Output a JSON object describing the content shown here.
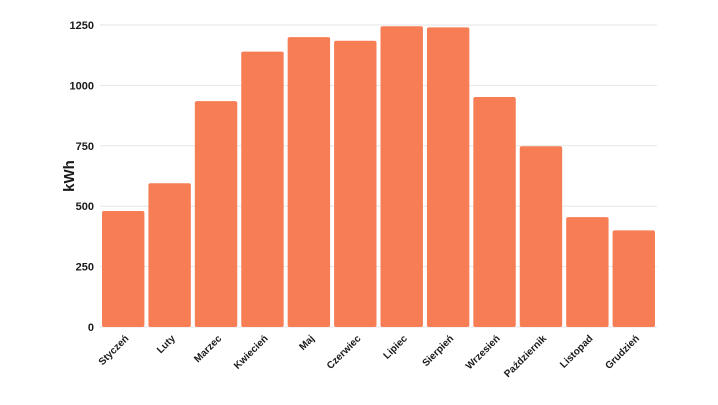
{
  "chart_data": {
    "type": "bar",
    "categories": [
      "Styczeń",
      "Luty",
      "Marzec",
      "Kwiecień",
      "Maj",
      "Czerwiec",
      "Lipiec",
      "Sierpień",
      "Wrzesień",
      "Październik",
      "Listopad",
      "Grudzień"
    ],
    "values": [
      480,
      595,
      935,
      1140,
      1200,
      1185,
      1245,
      1240,
      952,
      748,
      455,
      400
    ],
    "title": "",
    "xlabel": "",
    "ylabel": "kWh",
    "ylim": [
      0,
      1250
    ],
    "yticks": [
      0,
      250,
      500,
      750,
      1000,
      1250
    ],
    "grid": true,
    "bar_color": "#f77d55"
  }
}
